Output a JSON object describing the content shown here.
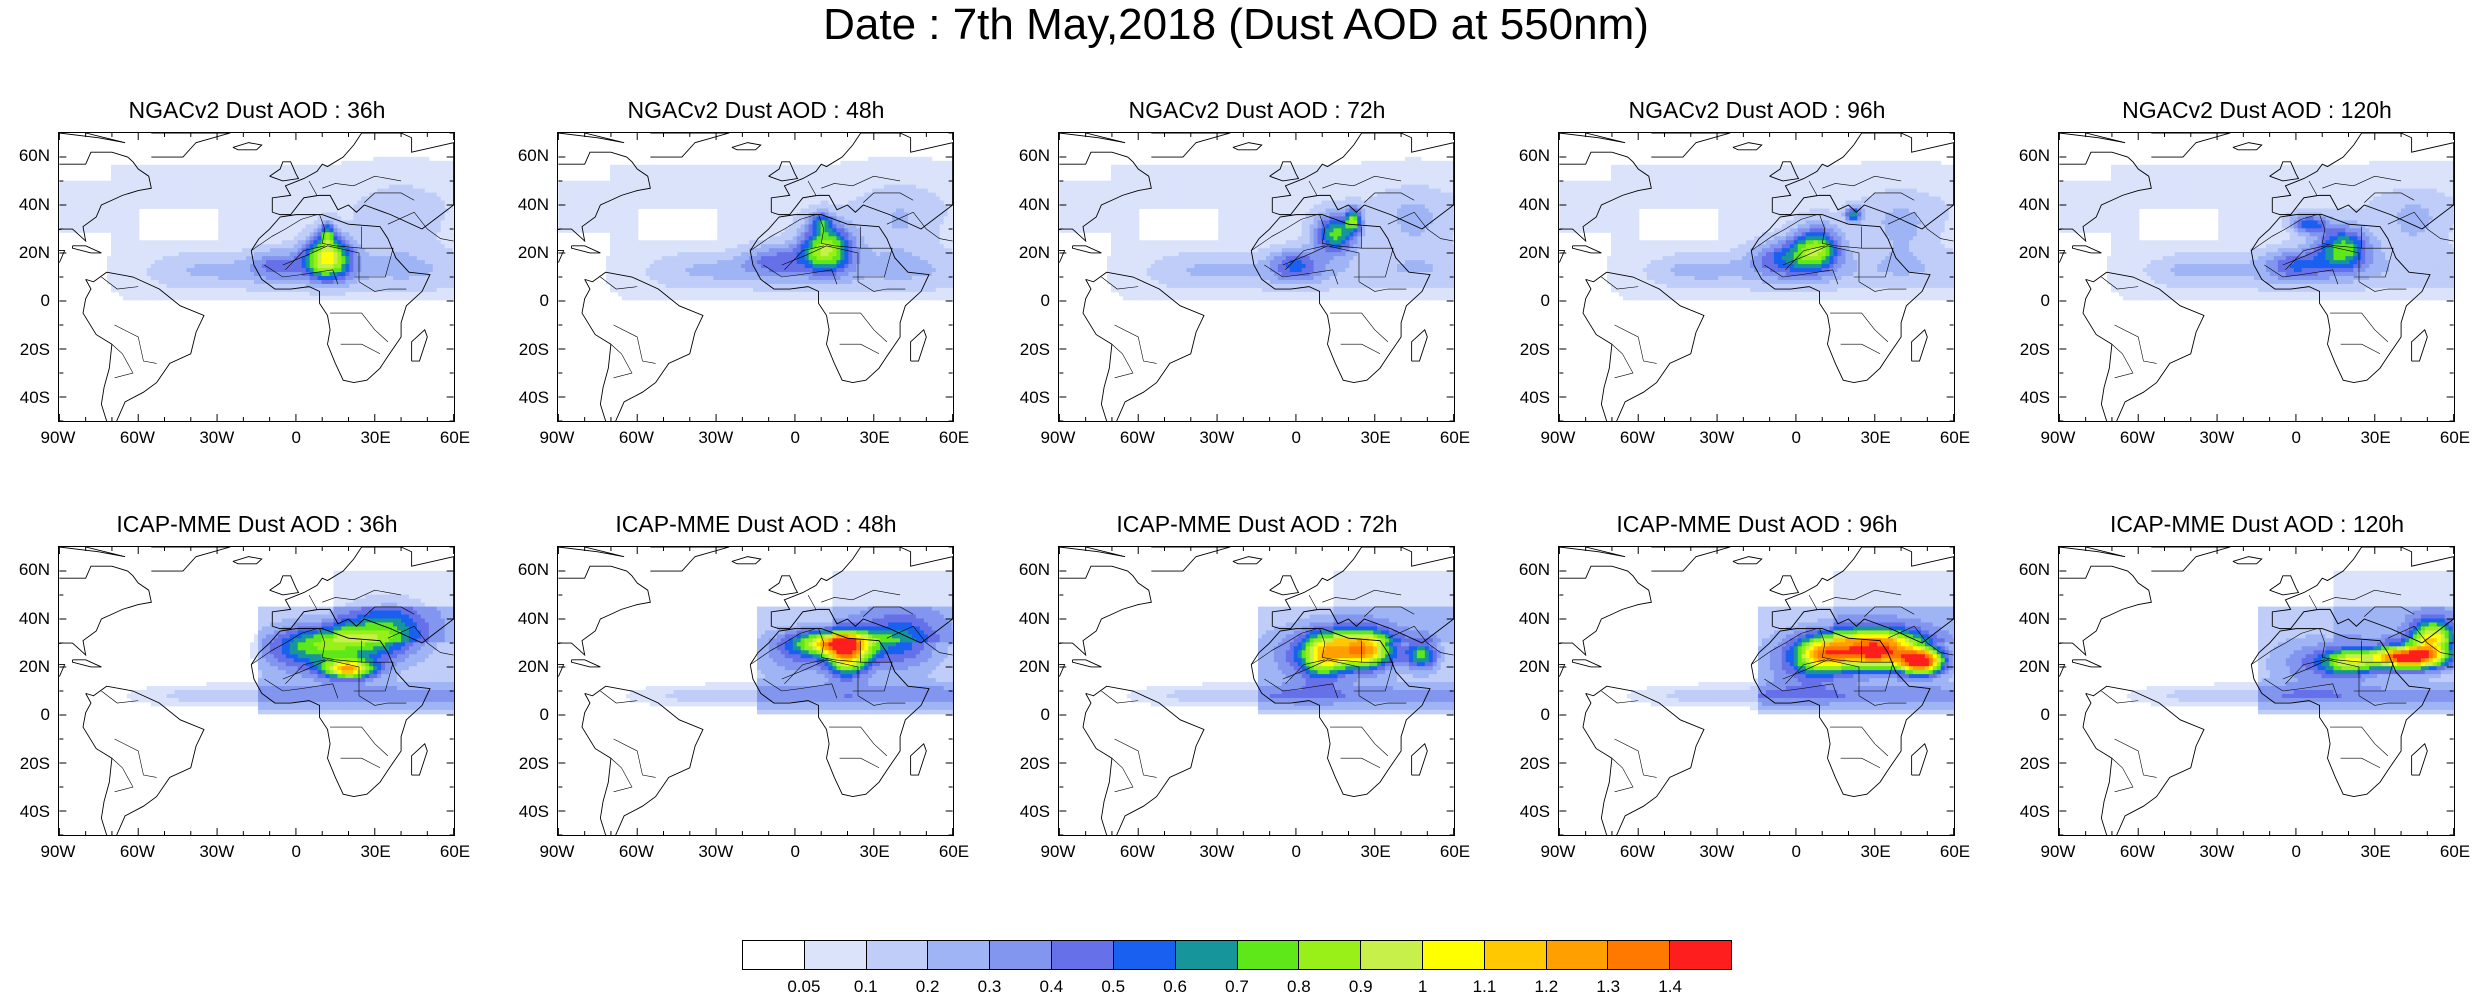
{
  "title": "Date : 7th May,2018 (Dust AOD at 550nm)",
  "map_data": {
    "type": "map-panels",
    "region": {
      "lon": [
        -90,
        60
      ],
      "lat": [
        -50,
        70
      ]
    },
    "lat_ticks": [
      "60N",
      "40N",
      "20N",
      "0",
      "20S",
      "40S"
    ],
    "lon_ticks": [
      "90W",
      "60W",
      "30W",
      "0",
      "30E",
      "60E"
    ],
    "rows": [
      {
        "model": "NGACv2",
        "panels": [
          {
            "title": "NGACv2 Dust AOD : 36h",
            "lead": "36h"
          },
          {
            "title": "NGACv2 Dust AOD : 48h",
            "lead": "48h"
          },
          {
            "title": "NGACv2 Dust AOD : 72h",
            "lead": "72h"
          },
          {
            "title": "NGACv2 Dust AOD : 96h",
            "lead": "96h"
          },
          {
            "title": "NGACv2 Dust AOD : 120h",
            "lead": "120h"
          }
        ]
      },
      {
        "model": "ICAP-MME",
        "panels": [
          {
            "title": "ICAP-MME Dust AOD : 36h",
            "lead": "36h"
          },
          {
            "title": "ICAP-MME Dust AOD : 48h",
            "lead": "48h"
          },
          {
            "title": "ICAP-MME Dust AOD : 72h",
            "lead": "72h"
          },
          {
            "title": "ICAP-MME Dust AOD : 96h",
            "lead": "96h"
          },
          {
            "title": "ICAP-MME Dust AOD : 120h",
            "lead": "120h"
          }
        ]
      }
    ],
    "colorbar": {
      "labels": [
        "0.05",
        "0.1",
        "0.2",
        "0.3",
        "0.4",
        "0.5",
        "0.6",
        "0.7",
        "0.8",
        "0.9",
        "1",
        "1.1",
        "1.2",
        "1.3",
        "1.4"
      ],
      "colors": [
        "#ffffff",
        "#dbe3fb",
        "#bfcdf8",
        "#9fb4f5",
        "#8296ef",
        "#6670e8",
        "#1960f0",
        "#16969a",
        "#5ee81a",
        "#98f018",
        "#c8f04a",
        "#ffff00",
        "#ffc800",
        "#ffa000",
        "#ff7800",
        "#ff1e1e"
      ]
    }
  }
}
